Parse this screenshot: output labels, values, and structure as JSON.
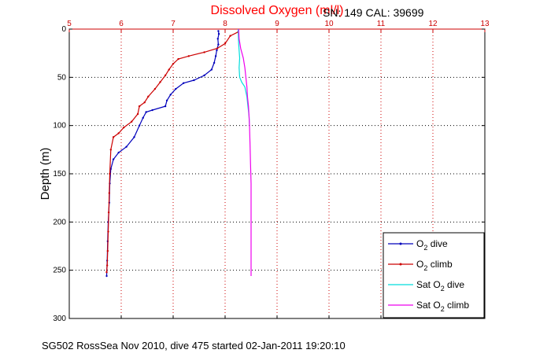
{
  "chart_data": {
    "type": "line",
    "title": "Dissolved Oxygen (ml/l)",
    "serial_label": "SN: 149  CAL: 39699",
    "ylabel": "Depth (m)",
    "footer": "SG502 RossSea Nov 2010, dive 475 started 02-Jan-2011 19:20:10",
    "xlim": [
      5,
      13
    ],
    "ylim": [
      0,
      300
    ],
    "y_reversed": true,
    "grid": true,
    "x_ticks": [
      "5",
      "6",
      "7",
      "8",
      "9",
      "10",
      "11",
      "12",
      "13"
    ],
    "y_ticks": [
      "0",
      "50",
      "100",
      "150",
      "200",
      "250",
      "300"
    ],
    "legend_position": "bottom-right",
    "series": [
      {
        "name": "O2 dive",
        "legend": {
          "base": "O",
          "sub": "2",
          "suffix": " dive"
        },
        "color": "#0000bb",
        "marker": "dot",
        "points": [
          [
            7.87,
            2
          ],
          [
            7.88,
            5
          ],
          [
            7.86,
            10
          ],
          [
            7.87,
            16
          ],
          [
            7.84,
            22
          ],
          [
            7.82,
            28
          ],
          [
            7.79,
            35
          ],
          [
            7.74,
            42
          ],
          [
            7.6,
            48
          ],
          [
            7.4,
            53
          ],
          [
            7.2,
            56
          ],
          [
            7.05,
            62
          ],
          [
            6.95,
            68
          ],
          [
            6.88,
            74
          ],
          [
            6.85,
            80
          ],
          [
            6.6,
            84
          ],
          [
            6.48,
            86
          ],
          [
            6.42,
            92
          ],
          [
            6.35,
            100
          ],
          [
            6.25,
            112
          ],
          [
            6.1,
            122
          ],
          [
            5.95,
            128
          ],
          [
            5.85,
            135
          ],
          [
            5.8,
            145
          ],
          [
            5.78,
            160
          ],
          [
            5.77,
            180
          ],
          [
            5.75,
            200
          ],
          [
            5.74,
            220
          ],
          [
            5.73,
            240
          ],
          [
            5.72,
            256
          ]
        ]
      },
      {
        "name": "O2 climb",
        "legend": {
          "base": "O",
          "sub": "2",
          "suffix": " climb"
        },
        "color": "#cc0000",
        "marker": "dot",
        "points": [
          [
            8.25,
            3
          ],
          [
            8.1,
            7
          ],
          [
            8.0,
            15
          ],
          [
            7.85,
            20
          ],
          [
            7.6,
            24
          ],
          [
            7.3,
            28
          ],
          [
            7.1,
            31
          ],
          [
            7.0,
            36
          ],
          [
            6.92,
            42
          ],
          [
            6.85,
            48
          ],
          [
            6.75,
            55
          ],
          [
            6.65,
            62
          ],
          [
            6.52,
            70
          ],
          [
            6.45,
            76
          ],
          [
            6.35,
            80
          ],
          [
            6.32,
            88
          ],
          [
            6.2,
            96
          ],
          [
            6.05,
            102
          ],
          [
            5.95,
            108
          ],
          [
            5.85,
            112
          ],
          [
            5.8,
            125
          ],
          [
            5.78,
            150
          ],
          [
            5.77,
            170
          ],
          [
            5.76,
            190
          ],
          [
            5.75,
            210
          ],
          [
            5.74,
            230
          ],
          [
            5.73,
            245
          ],
          [
            5.72,
            252
          ]
        ]
      },
      {
        "name": "Sat O2 dive",
        "legend": {
          "base": "Sat O",
          "sub": "2",
          "suffix": " dive"
        },
        "color": "#00dddd",
        "marker": "none",
        "points": [
          [
            8.25,
            0
          ],
          [
            8.26,
            15
          ],
          [
            8.28,
            30
          ],
          [
            8.27,
            40
          ],
          [
            8.28,
            50
          ],
          [
            8.32,
            55
          ],
          [
            8.38,
            60
          ],
          [
            8.42,
            70
          ],
          [
            8.44,
            80
          ],
          [
            8.46,
            90
          ],
          [
            8.47,
            100
          ]
        ]
      },
      {
        "name": "Sat O2 climb",
        "legend": {
          "base": "Sat O",
          "sub": "2",
          "suffix": " climb"
        },
        "color": "#ee00ee",
        "marker": "none",
        "points": [
          [
            8.26,
            0
          ],
          [
            8.27,
            10
          ],
          [
            8.3,
            20
          ],
          [
            8.35,
            30
          ],
          [
            8.38,
            40
          ],
          [
            8.4,
            50
          ],
          [
            8.42,
            60
          ],
          [
            8.43,
            70
          ],
          [
            8.45,
            80
          ],
          [
            8.46,
            90
          ],
          [
            8.47,
            100
          ],
          [
            8.48,
            120
          ],
          [
            8.49,
            140
          ],
          [
            8.5,
            160
          ],
          [
            8.5,
            190
          ],
          [
            8.5,
            220
          ],
          [
            8.5,
            256
          ]
        ]
      }
    ]
  }
}
